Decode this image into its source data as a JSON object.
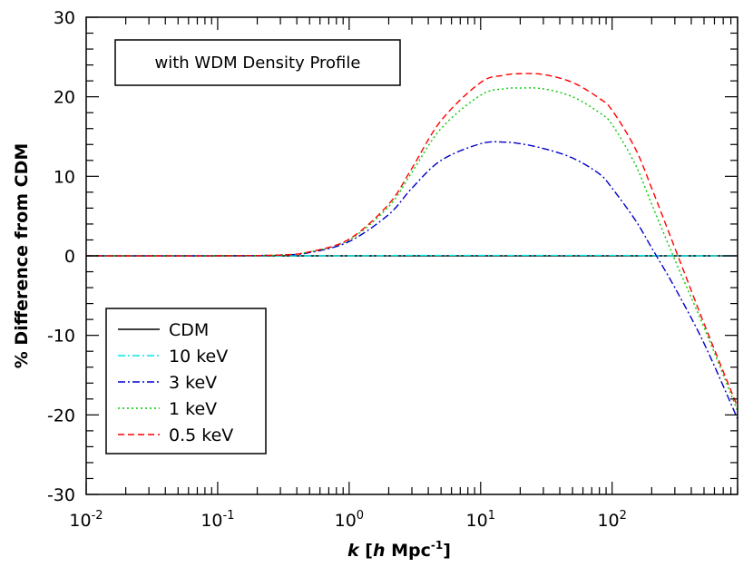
{
  "chart_data": {
    "type": "line",
    "title": "",
    "annotation": "with WDM Density Profile",
    "xlabel": {
      "italic": "k",
      "open": " [",
      "h": "h",
      "mid": " Mpc",
      "sup": "-1",
      "close": "]"
    },
    "ylabel": "% Difference from CDM",
    "xscale": "log",
    "xlim": [
      0.01,
      900
    ],
    "ylim": [
      -30,
      30
    ],
    "x_ticks": [
      {
        "base": "10",
        "exp": "-2",
        "value": 0.01
      },
      {
        "base": "10",
        "exp": "-1",
        "value": 0.1
      },
      {
        "base": "10",
        "exp": "0",
        "value": 1
      },
      {
        "base": "10",
        "exp": "1",
        "value": 10
      },
      {
        "base": "10",
        "exp": "2",
        "value": 100
      }
    ],
    "y_ticks": [
      {
        "label": "30",
        "value": 30
      },
      {
        "label": "20",
        "value": 20
      },
      {
        "label": "10",
        "value": 10
      },
      {
        "label": "0",
        "value": 0
      },
      {
        "label": "-10",
        "value": -10
      },
      {
        "label": "-20",
        "value": -20
      },
      {
        "label": "-30",
        "value": -30
      }
    ],
    "legend_position": "bottom-left",
    "series": [
      {
        "name": "CDM",
        "color": "#000000",
        "dash": "solid",
        "x": [
          0.01,
          900
        ],
        "y": [
          0,
          0
        ]
      },
      {
        "name": "10 keV",
        "color": "#00e5e5",
        "dash": "dashdot",
        "x": [
          0.01,
          0.5,
          1,
          3,
          10,
          100,
          300,
          900
        ],
        "y": [
          0,
          0.0,
          0.0,
          0.05,
          0.05,
          0.05,
          0.0,
          0.0
        ]
      },
      {
        "name": "3 keV",
        "color": "#0000cc",
        "dash": "dashdot",
        "x": [
          0.01,
          0.1,
          0.3,
          0.5,
          1,
          2,
          3,
          5,
          10,
          15,
          20,
          30,
          50,
          80,
          100,
          150,
          200,
          300,
          500,
          900
        ],
        "y": [
          0,
          0,
          0.1,
          0.4,
          1.8,
          5.2,
          8.5,
          12.0,
          14.1,
          14.3,
          14.1,
          13.5,
          12.3,
          10.3,
          8.5,
          4.5,
          1.0,
          -4.0,
          -11.0,
          -20.5
        ]
      },
      {
        "name": "1 keV",
        "color": "#00cc00",
        "dash": "dotted",
        "x": [
          0.01,
          0.1,
          0.3,
          0.5,
          1,
          2,
          3,
          5,
          10,
          15,
          20,
          30,
          50,
          80,
          100,
          150,
          200,
          300,
          500,
          900
        ],
        "y": [
          0,
          0,
          0.1,
          0.5,
          2.0,
          6.2,
          10.5,
          16.0,
          20.2,
          21.0,
          21.1,
          21.0,
          20.0,
          18.0,
          16.5,
          11.5,
          6.5,
          -0.5,
          -9.0,
          -19.5
        ]
      },
      {
        "name": "0.5 keV",
        "color": "#ff0000",
        "dash": "dashed",
        "x": [
          0.01,
          0.1,
          0.3,
          0.5,
          1,
          2,
          3,
          5,
          10,
          15,
          20,
          30,
          50,
          80,
          100,
          150,
          200,
          300,
          500,
          900
        ],
        "y": [
          0,
          0,
          0.1,
          0.5,
          2.1,
          6.5,
          11.0,
          17.0,
          21.8,
          22.7,
          22.9,
          22.8,
          21.8,
          19.8,
          18.3,
          13.5,
          8.5,
          1.0,
          -8.5,
          -19.0
        ]
      }
    ]
  }
}
